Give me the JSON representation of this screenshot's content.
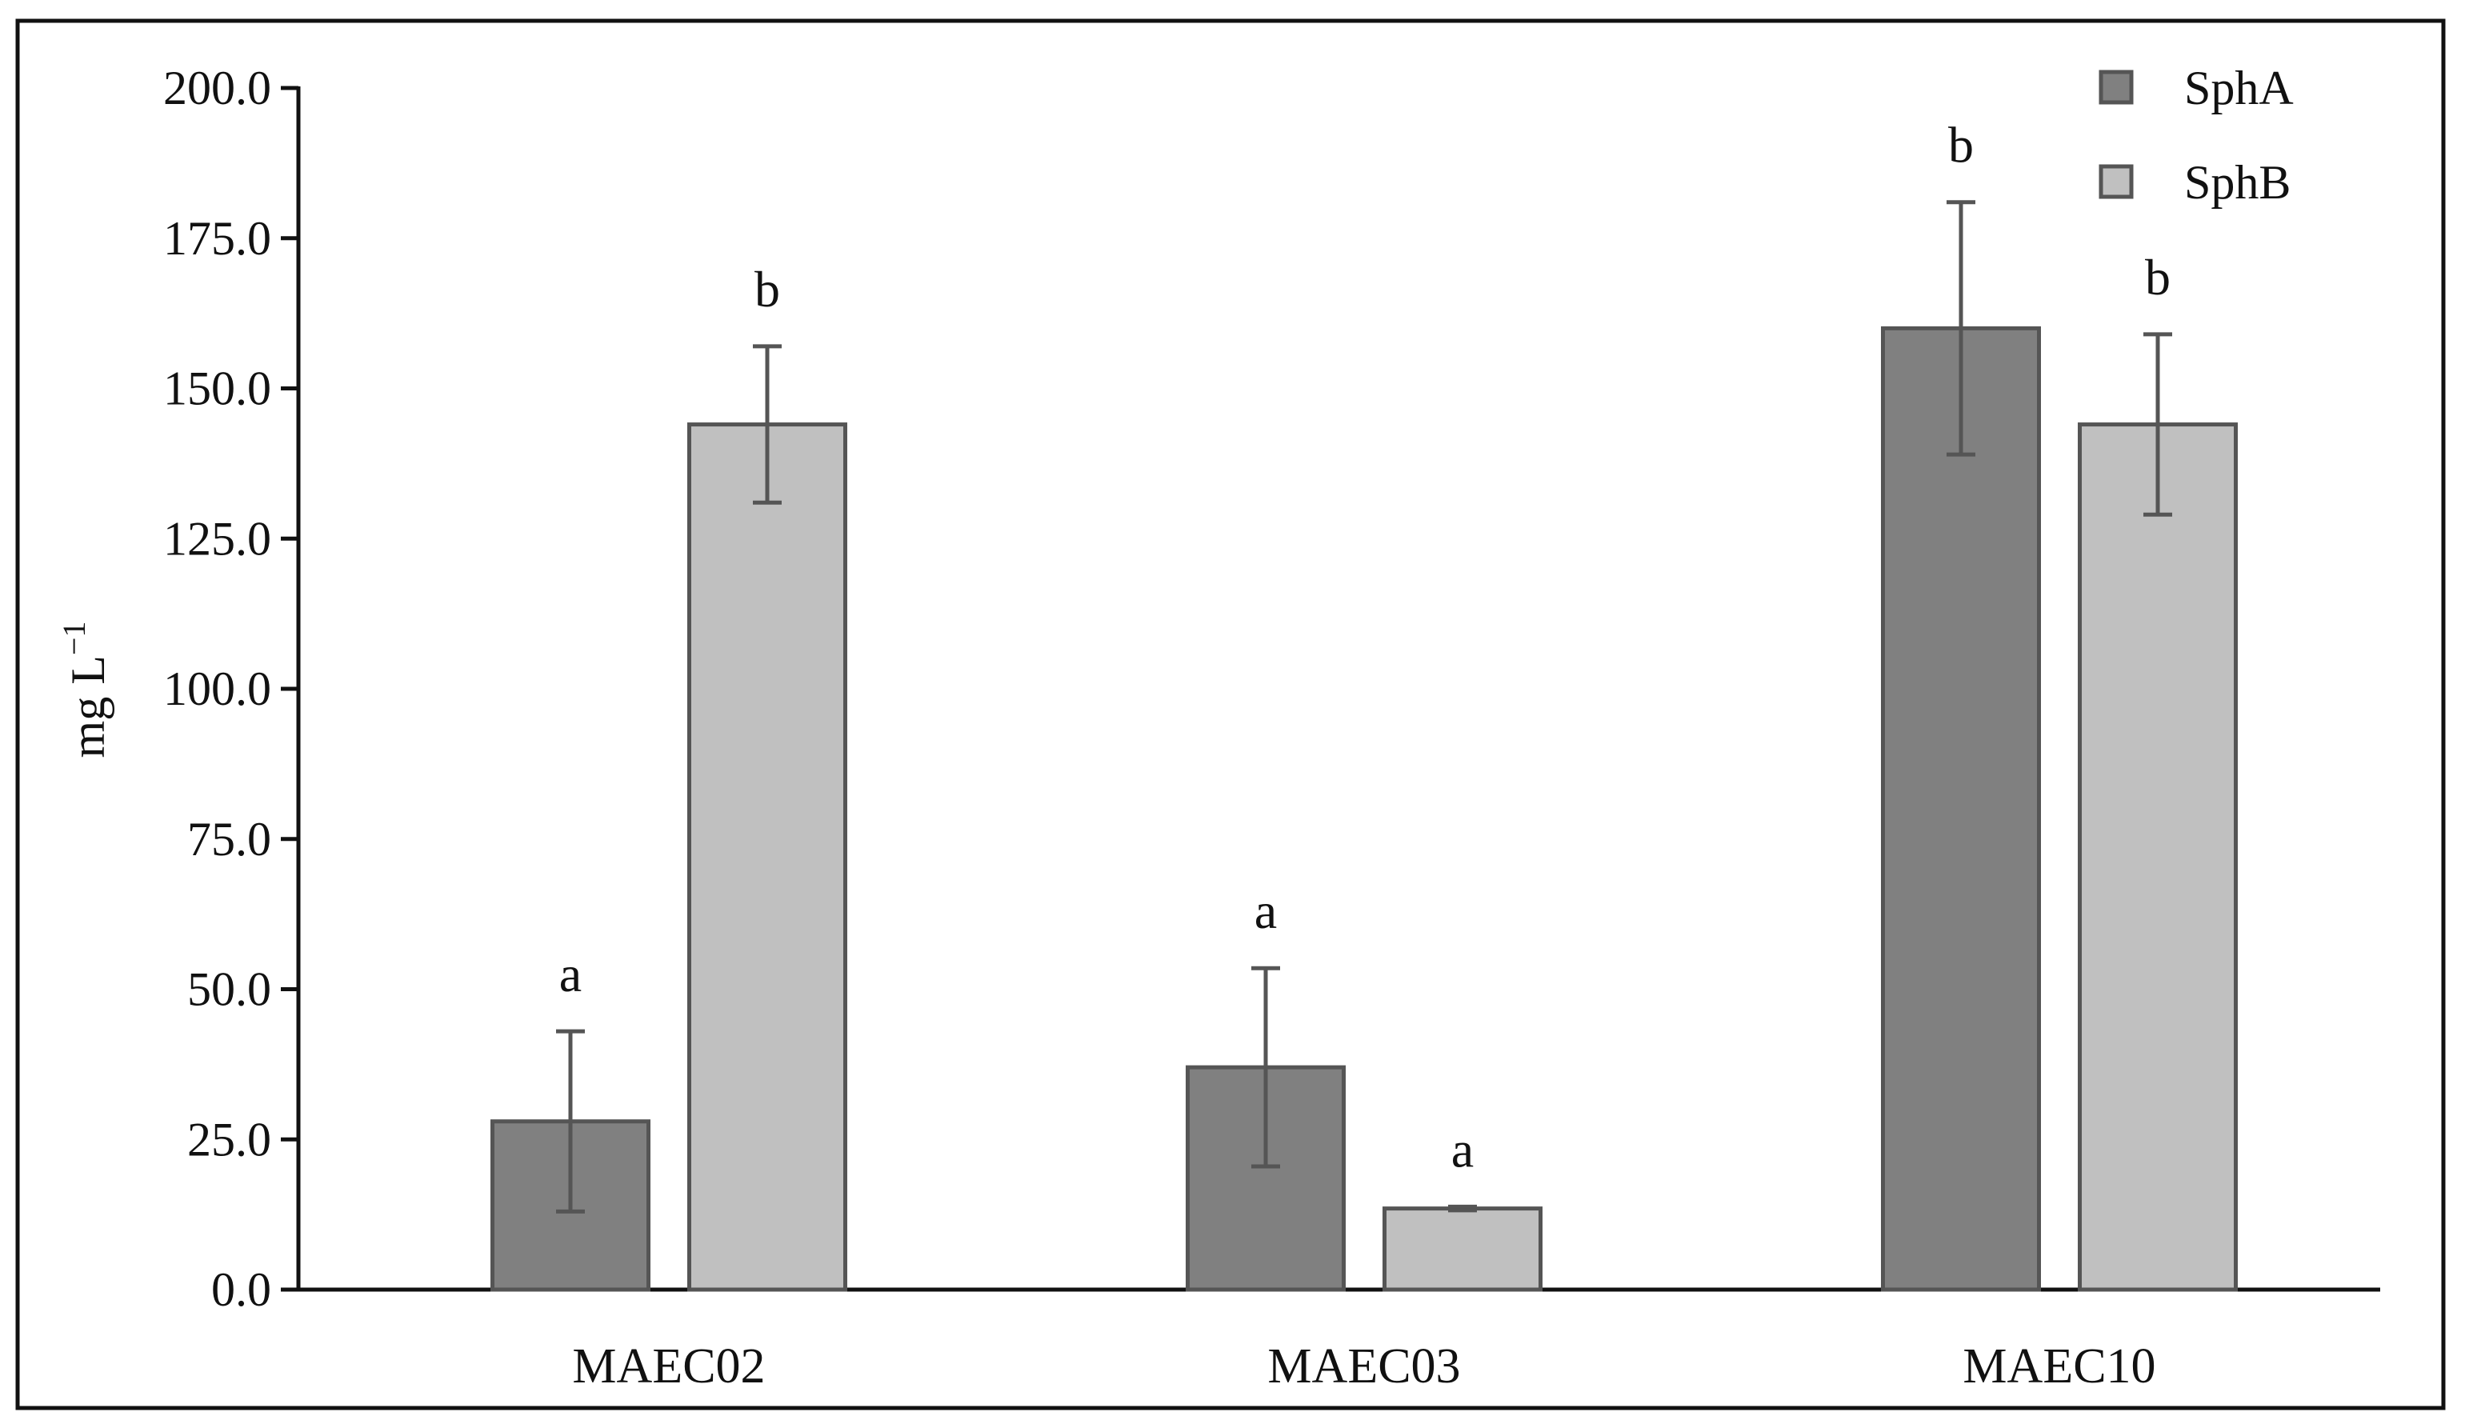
{
  "chart_data": {
    "type": "bar",
    "categories": [
      "MAEC02",
      "MAEC03",
      "MAEC10"
    ],
    "series": [
      {
        "name": "SphA",
        "color": "#808080",
        "values": [
          28.0,
          37.0,
          160.0
        ],
        "errors": [
          15.0,
          16.5,
          21.0
        ],
        "letters": [
          "a",
          "a",
          "b"
        ]
      },
      {
        "name": "SphB",
        "color": "#c0c0c0",
        "values": [
          144.0,
          13.5,
          144.0
        ],
        "errors": [
          13.0,
          0.3,
          15.0
        ],
        "letters": [
          "b",
          "a",
          "b"
        ]
      }
    ],
    "ylabel_main": "mg L",
    "ylabel_sup": "−1",
    "ylim": [
      0,
      200
    ],
    "yticks": [
      "0.0",
      "25.0",
      "50.0",
      "75.0",
      "100.0",
      "125.0",
      "150.0",
      "175.0",
      "200.0"
    ],
    "legend_position": "top-right",
    "grid": false
  }
}
